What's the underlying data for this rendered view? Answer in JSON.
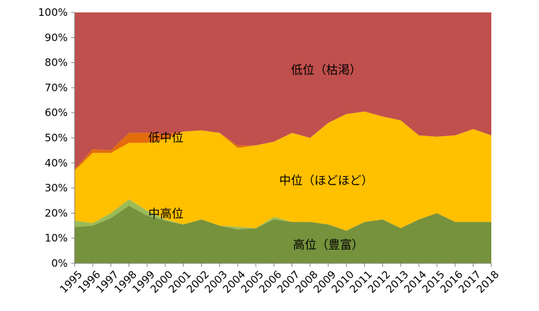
{
  "chart_data": {
    "type": "area",
    "stacked": true,
    "percent_stacked": true,
    "x": [
      "1995",
      "1996",
      "1997",
      "1998",
      "1999",
      "2000",
      "2001",
      "2002",
      "2003",
      "2004",
      "2005",
      "2006",
      "2007",
      "2008",
      "2009",
      "2010",
      "2011",
      "2012",
      "2013",
      "2014",
      "2015",
      "2016",
      "2017",
      "2018"
    ],
    "series": [
      {
        "name": "高位（豊富）",
        "color": "#76923C",
        "values": [
          14.5,
          15,
          18,
          23,
          19,
          17,
          15.5,
          17.5,
          15,
          13.5,
          14,
          17.5,
          16.5,
          16.5,
          15.5,
          13,
          16.5,
          17.5,
          14,
          17.5,
          20,
          16.5,
          16.5,
          16.5
        ]
      },
      {
        "name": "中高位",
        "color": "#9BBB59",
        "values": [
          2.5,
          1,
          2,
          2.5,
          2,
          0.5,
          0,
          0,
          0,
          1,
          0,
          1,
          0,
          0,
          0,
          0,
          0,
          0,
          0,
          0,
          0,
          0,
          0,
          0
        ]
      },
      {
        "name": "中位（ほどほど）",
        "color": "#FFC000",
        "values": [
          20,
          28,
          24,
          22.5,
          27,
          32,
          37,
          35.5,
          37,
          31.5,
          33,
          30,
          35.5,
          33.5,
          40.5,
          46.5,
          44,
          41,
          43,
          33.5,
          30.5,
          34.5,
          37,
          34.5
        ]
      },
      {
        "name": "低中位",
        "color": "#E46C0A",
        "values": [
          0.5,
          1.5,
          1,
          4,
          4,
          2,
          0,
          0,
          0,
          1,
          0,
          0,
          0,
          0,
          0,
          0,
          0,
          0,
          0,
          0,
          0,
          0,
          0,
          0
        ]
      },
      {
        "name": "低位（枯渇）",
        "color": "#C0504D",
        "values": [
          62.5,
          54.5,
          55,
          48,
          48,
          48.5,
          47.5,
          47,
          48,
          53,
          53,
          51.5,
          48,
          50,
          44,
          40.5,
          39.5,
          41.5,
          43,
          49,
          49.5,
          49,
          46.5,
          49
        ]
      }
    ],
    "y_ticks": [
      "0%",
      "10%",
      "20%",
      "30%",
      "40%",
      "50%",
      "60%",
      "70%",
      "80%",
      "90%",
      "100%"
    ],
    "ylim": [
      0,
      100
    ],
    "labels": {
      "low": "低位（枯渇）",
      "low_mid": "低中位",
      "mid": "中位（ほどほど）",
      "mid_high": "中高位",
      "high": "高位（豊富）"
    },
    "grid": false,
    "legend": "none"
  }
}
